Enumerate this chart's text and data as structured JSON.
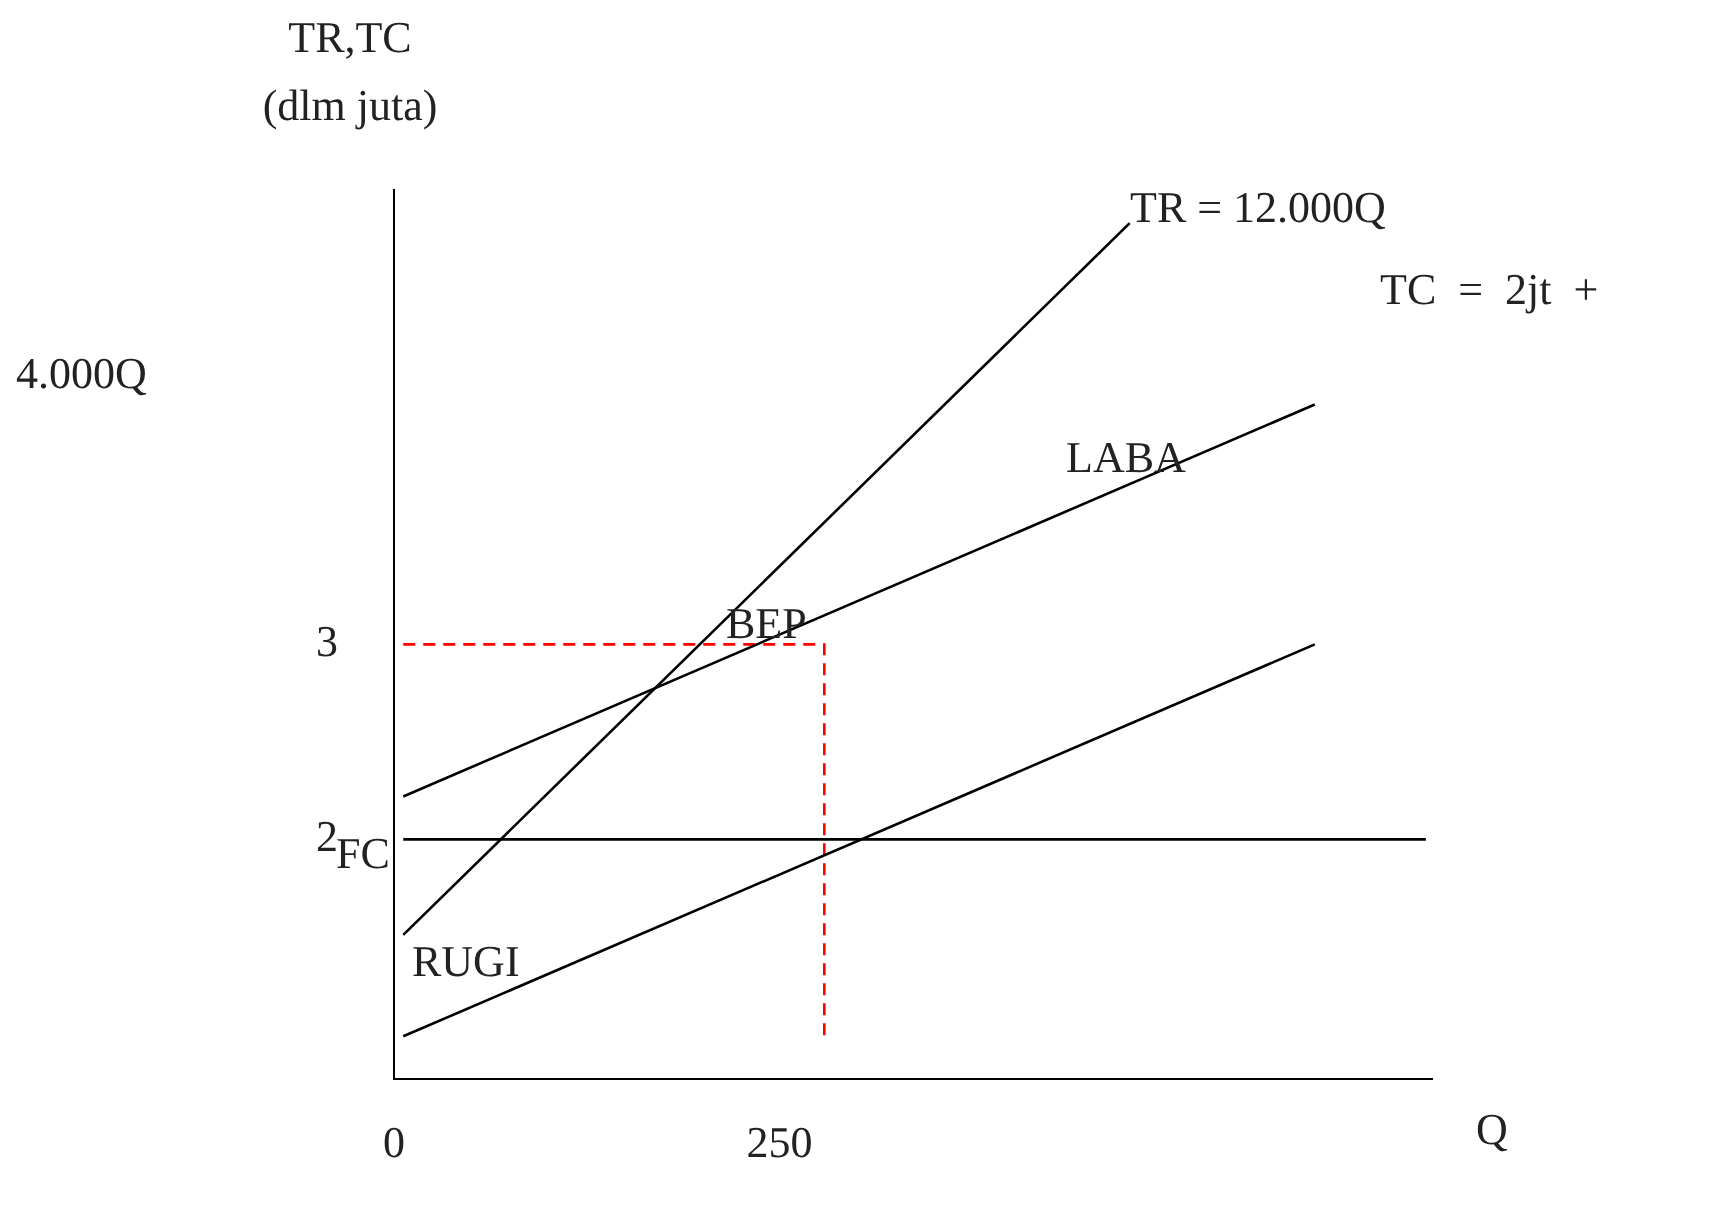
{
  "chart_data": {
    "type": "line",
    "ylabel": "TR,TC\n(dlm juta)",
    "xlabel": "Q",
    "xlim": [
      0,
      673
    ],
    "ylim": [
      0.77,
      5.33
    ],
    "xticks": [
      0,
      250
    ],
    "yticks": [
      2,
      3
    ],
    "grid": false,
    "legend": false,
    "marker": "none",
    "series": [
      {
        "color": "#000000",
        "x": [
          6,
          477
        ],
        "values": [
          1.51,
          5.16
        ]
      },
      {
        "color": "#000000",
        "x": [
          6,
          597
        ],
        "values": [
          2.22,
          4.23
        ]
      },
      {
        "color": "#000000",
        "x": [
          6,
          669
        ],
        "values": [
          2,
          2
        ]
      },
      {
        "color": "#000000",
        "x": [
          6,
          597
        ],
        "values": [
          0.99,
          3.0
        ]
      },
      {
        "color": "#ff0000",
        "line_style": "dashed",
        "x": [
          6,
          279,
          279
        ],
        "values": [
          3,
          3,
          0.98
        ]
      }
    ],
    "annotations": [
      "TR = 12.000Q",
      "TC  =  2jt  +",
      "4.000Q",
      "LABA",
      "BEP",
      "FC",
      "RUGI"
    ]
  }
}
